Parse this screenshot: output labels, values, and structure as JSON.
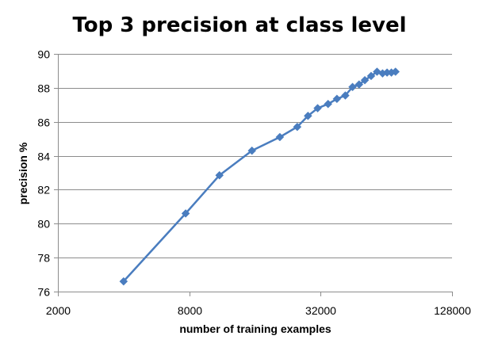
{
  "chart_data": {
    "type": "line",
    "title": "Top 3 precision at class level",
    "xlabel": "number of training examples",
    "ylabel": "precision %",
    "x_scale": "log2",
    "xlim": [
      2000,
      128000
    ],
    "ylim": [
      76,
      90
    ],
    "x_ticks": [
      2000,
      8000,
      32000,
      128000
    ],
    "x_tick_labels": [
      "2000",
      "8000",
      "32000",
      "128000"
    ],
    "y_ticks": [
      76,
      78,
      80,
      82,
      84,
      86,
      88,
      90
    ],
    "y_tick_labels": [
      "76",
      "78",
      "80",
      "82",
      "84",
      "86",
      "88",
      "90"
    ],
    "grid": true,
    "legend": "none",
    "series": [
      {
        "color": "#4a7dbf",
        "marker": "diamond",
        "x": [
          4000,
          7700,
          11000,
          15500,
          20800,
          25000,
          28000,
          31000,
          34600,
          38000,
          41500,
          44800,
          48000,
          51000,
          54500,
          58000,
          61500,
          64500,
          67500,
          70500
        ],
        "y": [
          76.6,
          80.6,
          82.85,
          84.3,
          85.1,
          85.7,
          86.35,
          86.8,
          87.05,
          87.35,
          87.55,
          88.05,
          88.2,
          88.45,
          88.7,
          88.95,
          88.85,
          88.9,
          88.9,
          88.95
        ]
      }
    ]
  }
}
